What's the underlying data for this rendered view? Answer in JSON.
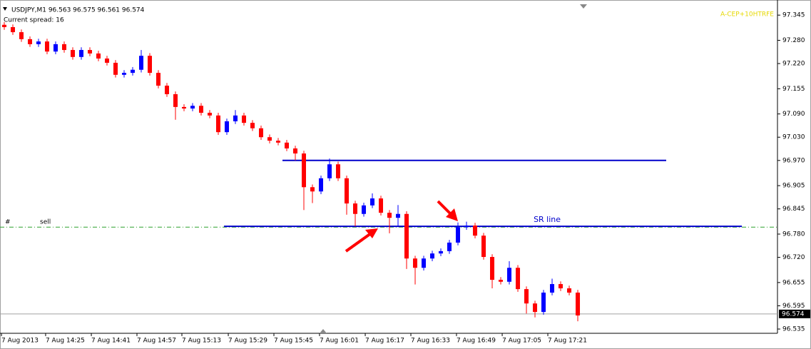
{
  "chart_data": {
    "type": "candlestick",
    "title": "USDJPY,M1  96.563 96.575 96.561 96.574",
    "subtitle": "Current spread: 16",
    "corner_text": "A-CEP+10HTRFE",
    "up_color": "#0000ff",
    "down_color": "#ff0000",
    "open": [
      97.32,
      97.314,
      97.301,
      97.283,
      97.27,
      97.277,
      97.251,
      97.27,
      97.255,
      97.237,
      97.255,
      97.246,
      97.233,
      97.222,
      97.191,
      97.196,
      97.204,
      97.24,
      97.196,
      97.163,
      97.141,
      97.108,
      97.104,
      97.111,
      97.093,
      97.086,
      97.043,
      97.071,
      97.086,
      97.067,
      97.053,
      97.03,
      97.021,
      97.016,
      97.001,
      96.988,
      96.901,
      96.89,
      96.924,
      96.96,
      96.924,
      96.859,
      96.832,
      96.854,
      96.872,
      96.835,
      96.822,
      96.832,
      96.717,
      96.693,
      96.717,
      96.73,
      96.736,
      96.758,
      96.798,
      96.802,
      96.776,
      96.721,
      96.662,
      96.657,
      96.693,
      96.638,
      96.601,
      96.579,
      96.629,
      96.651,
      96.64,
      96.629
    ],
    "high": [
      97.327,
      97.321,
      97.308,
      97.29,
      97.284,
      97.284,
      97.277,
      97.277,
      97.262,
      97.262,
      97.262,
      97.253,
      97.24,
      97.229,
      97.203,
      97.211,
      97.255,
      97.247,
      97.203,
      97.17,
      97.148,
      97.115,
      97.118,
      97.118,
      97.1,
      97.093,
      97.078,
      97.1,
      97.093,
      97.074,
      97.06,
      97.037,
      97.028,
      97.023,
      97.008,
      96.995,
      96.908,
      96.931,
      96.975,
      96.967,
      96.931,
      96.866,
      96.861,
      96.885,
      96.879,
      96.842,
      96.855,
      96.839,
      96.724,
      96.724,
      96.737,
      96.743,
      96.765,
      96.81,
      96.812,
      96.809,
      96.783,
      96.728,
      96.669,
      96.71,
      96.7,
      96.645,
      96.608,
      96.636,
      96.665,
      96.658,
      96.647,
      96.636
    ],
    "low": [
      97.307,
      97.294,
      97.276,
      97.263,
      97.263,
      97.244,
      97.244,
      97.248,
      97.23,
      97.23,
      97.239,
      97.226,
      97.215,
      97.184,
      97.184,
      97.189,
      97.197,
      97.189,
      97.156,
      97.134,
      97.075,
      97.097,
      97.097,
      97.086,
      97.079,
      97.036,
      97.036,
      97.064,
      97.06,
      97.046,
      97.023,
      97.014,
      97.009,
      96.994,
      96.97,
      96.842,
      96.86,
      96.883,
      96.917,
      96.917,
      96.83,
      96.8,
      96.825,
      96.847,
      96.828,
      96.782,
      96.8,
      96.69,
      96.65,
      96.686,
      96.71,
      96.723,
      96.729,
      96.751,
      96.791,
      96.769,
      96.714,
      96.64,
      96.65,
      96.65,
      96.631,
      96.575,
      96.565,
      96.572,
      96.622,
      96.633,
      96.622,
      96.555
    ],
    "close": [
      97.314,
      97.301,
      97.283,
      97.27,
      97.277,
      97.251,
      97.27,
      97.255,
      97.237,
      97.255,
      97.246,
      97.233,
      97.222,
      97.191,
      97.196,
      97.204,
      97.24,
      97.196,
      97.163,
      97.141,
      97.108,
      97.104,
      97.111,
      97.093,
      97.086,
      97.043,
      97.071,
      97.086,
      97.067,
      97.053,
      97.03,
      97.021,
      97.016,
      97.001,
      96.988,
      96.901,
      96.89,
      96.924,
      96.96,
      96.924,
      96.859,
      96.832,
      96.854,
      96.872,
      96.835,
      96.822,
      96.832,
      96.717,
      96.693,
      96.717,
      96.73,
      96.736,
      96.758,
      96.798,
      96.802,
      96.776,
      96.721,
      96.662,
      96.657,
      96.693,
      96.638,
      96.601,
      96.579,
      96.629,
      96.651,
      96.64,
      96.629,
      96.57
    ],
    "xlim": [
      -0.5,
      90.33
    ],
    "xticks": [
      {
        "value": -0.33,
        "label": "7 Aug 2013"
      },
      {
        "value": 4.83,
        "label": "7 Aug 14:25"
      },
      {
        "value": 10.17,
        "label": "7 Aug 14:41"
      },
      {
        "value": 15.5,
        "label": "7 Aug 14:57"
      },
      {
        "value": 20.75,
        "label": "7 Aug 15:13"
      },
      {
        "value": 26.17,
        "label": "7 Aug 15:29"
      },
      {
        "value": 31.5,
        "label": "7 Aug 15:45"
      },
      {
        "value": 36.83,
        "label": "7 Aug 16:01"
      },
      {
        "value": 42.17,
        "label": "7 Aug 16:17"
      },
      {
        "value": 47.5,
        "label": "7 Aug 16:33"
      },
      {
        "value": 52.83,
        "label": "7 Aug 16:49"
      },
      {
        "value": 58.17,
        "label": "7 Aug 17:05"
      },
      {
        "value": 63.5,
        "label": "7 Aug 17:21"
      }
    ],
    "ylim": [
      96.524,
      97.384
    ],
    "yticks": [
      97.345,
      {
        "value": 97.28,
        "label": "97.280"
      },
      {
        "value": 97.22,
        "label": "97.220"
      },
      97.155,
      {
        "value": 97.09,
        "label": "97.090"
      },
      {
        "value": 97.03,
        "label": "97.030"
      },
      {
        "value": 96.97,
        "label": "96.970"
      },
      96.905,
      96.845,
      {
        "value": 96.78,
        "label": "96.780"
      },
      {
        "value": 96.72,
        "label": "96.720"
      },
      96.655,
      96.595,
      96.535
    ],
    "sr_lines": [
      {
        "value": 96.97,
        "x": [
          32.5,
          77.33
        ],
        "color": "#0000cc"
      },
      {
        "value": 96.8,
        "x": [
          25.67,
          86.17
        ],
        "color": "#0000cc",
        "label": "SR line"
      }
    ],
    "order_line": {
      "value": 96.798,
      "marker": "#",
      "label": "sell",
      "color": "#2ca02c"
    },
    "price_line": {
      "value": 96.574,
      "color": "#a0a0a0"
    }
  }
}
